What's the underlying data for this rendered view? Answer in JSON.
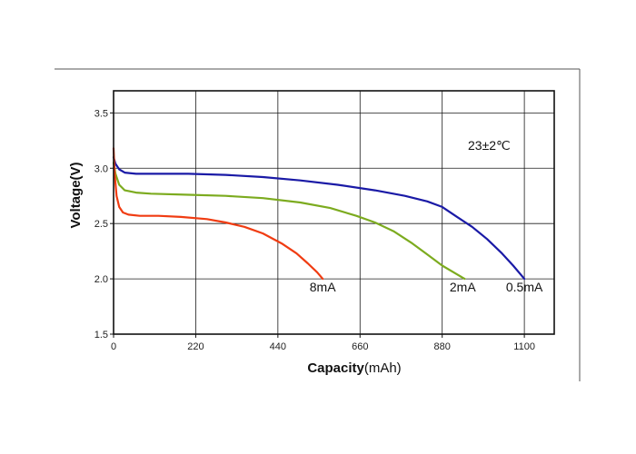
{
  "chart_data": {
    "type": "line",
    "title": "",
    "annotation": "23±2℃",
    "xlabel_bold": "Capacity",
    "xlabel_unit": "(mAh)",
    "ylabel": "Voltage(V)",
    "xlim": [
      0,
      1180
    ],
    "ylim": [
      1.5,
      3.7
    ],
    "xticks": [
      0,
      220,
      440,
      660,
      880,
      1100
    ],
    "xtick_labels": [
      "0",
      "220",
      "440",
      "660",
      "880",
      "1100"
    ],
    "yticks": [
      1.5,
      2.0,
      2.5,
      3.0,
      3.5
    ],
    "ytick_labels": [
      "1.5",
      "2.0",
      "2.5",
      "3.0",
      "3.5"
    ],
    "grid": true,
    "series": [
      {
        "name": "0.5mA",
        "color": "#1a1aa6",
        "x": [
          0,
          5,
          15,
          30,
          60,
          100,
          200,
          300,
          400,
          500,
          600,
          700,
          780,
          840,
          880,
          920,
          960,
          1000,
          1040,
          1070,
          1100
        ],
        "y": [
          3.1,
          3.04,
          2.99,
          2.96,
          2.95,
          2.95,
          2.95,
          2.94,
          2.92,
          2.89,
          2.85,
          2.8,
          2.75,
          2.7,
          2.65,
          2.56,
          2.47,
          2.36,
          2.23,
          2.12,
          2.0
        ]
      },
      {
        "name": "2mA",
        "color": "#7cab1f",
        "x": [
          0,
          5,
          15,
          30,
          60,
          100,
          200,
          300,
          400,
          500,
          580,
          650,
          700,
          750,
          800,
          840,
          880,
          920,
          940
        ],
        "y": [
          3.05,
          2.95,
          2.85,
          2.8,
          2.78,
          2.77,
          2.76,
          2.75,
          2.73,
          2.69,
          2.64,
          2.57,
          2.51,
          2.43,
          2.32,
          2.22,
          2.12,
          2.04,
          2.0
        ]
      },
      {
        "name": "8mA",
        "color": "#f03c12",
        "x": [
          0,
          3,
          8,
          15,
          25,
          40,
          70,
          120,
          180,
          250,
          300,
          350,
          400,
          450,
          490,
          520,
          545,
          560
        ],
        "y": [
          3.18,
          2.95,
          2.75,
          2.65,
          2.6,
          2.58,
          2.57,
          2.57,
          2.56,
          2.54,
          2.51,
          2.47,
          2.41,
          2.32,
          2.23,
          2.14,
          2.06,
          2.0
        ]
      }
    ],
    "curve_labels": [
      {
        "text": "8mA",
        "x": 560,
        "y": 1.92
      },
      {
        "text": "2mA",
        "x": 935,
        "y": 1.92
      },
      {
        "text": "0.5mA",
        "x": 1100,
        "y": 1.92
      }
    ]
  }
}
